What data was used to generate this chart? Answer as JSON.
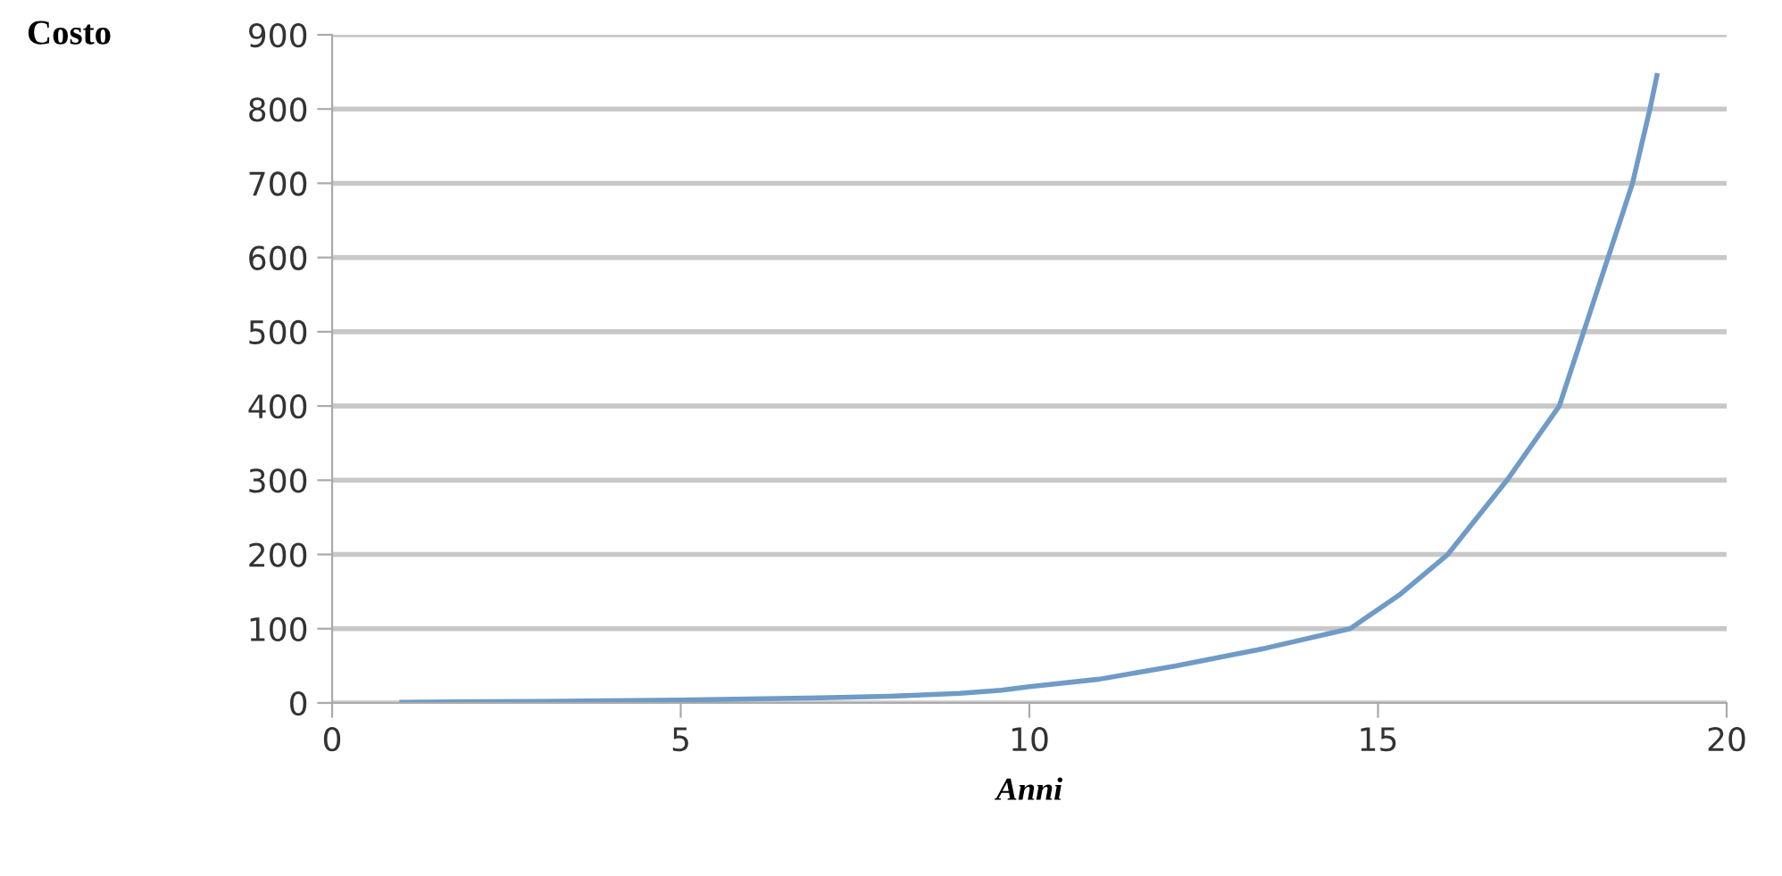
{
  "chart_data": {
    "type": "line",
    "ylabel": "Costo",
    "xlabel": "Anni",
    "series": [
      {
        "color": "#6f9bc6",
        "x": [
          1,
          3,
          5,
          7,
          8,
          9,
          9.6,
          10,
          11,
          12.1,
          13.4,
          14.6,
          15.3,
          16,
          16.85,
          17.6,
          17.95,
          18.3,
          18.65,
          18.9,
          19
        ],
        "values": [
          1,
          2,
          4,
          7,
          9,
          13,
          17,
          22,
          32,
          50,
          74,
          100,
          145,
          200,
          300,
          400,
          500,
          600,
          700,
          800,
          845
        ]
      }
    ],
    "xlim": [
      0,
      20
    ],
    "xticks": [
      0,
      5,
      10,
      15,
      20
    ],
    "ylim": [
      0,
      900
    ],
    "yticks": [
      0,
      100,
      200,
      300,
      400,
      500,
      600,
      700,
      800,
      900
    ],
    "grid": "y",
    "legend": false,
    "marker": "none",
    "line_style": "solid"
  }
}
